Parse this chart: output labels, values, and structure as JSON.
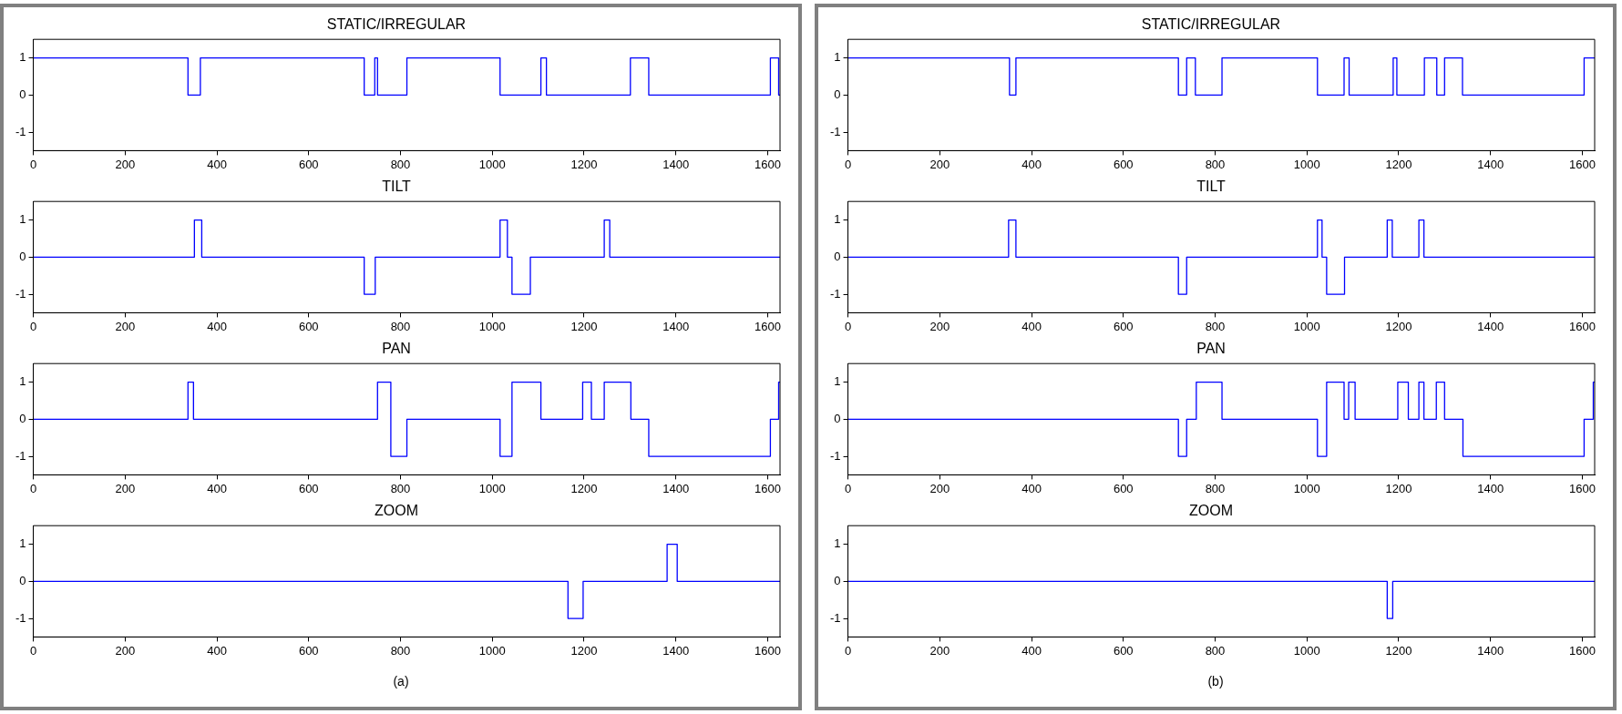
{
  "chart_data": [
    {
      "type": "step",
      "title": "STATIC/IRREGULAR",
      "x": [
        0,
        337,
        364,
        721,
        744,
        750,
        814,
        1017,
        1106,
        1118,
        1301,
        1341,
        1606,
        1624,
        1627
      ],
      "values": [
        1,
        0,
        1,
        0,
        1,
        0,
        1,
        0,
        1,
        0,
        1,
        0,
        1,
        0,
        0
      ],
      "color": "#0000ff",
      "xlim": [
        0,
        1627
      ],
      "xticks": [
        0,
        200,
        400,
        600,
        800,
        1000,
        1200,
        1400,
        1600
      ],
      "ylim": [
        -1.5,
        1.5
      ],
      "yticks": [
        -1,
        0,
        1
      ],
      "grid": false
    },
    {
      "type": "step",
      "title": "TILT",
      "x": [
        0,
        351,
        367,
        721,
        745,
        1017,
        1033,
        1043,
        1083,
        1244,
        1256,
        1627
      ],
      "values": [
        0,
        1,
        0,
        -1,
        0,
        1,
        0,
        -1,
        0,
        1,
        0,
        0
      ],
      "color": "#0000ff",
      "xlim": [
        0,
        1627
      ],
      "xticks": [
        0,
        200,
        400,
        600,
        800,
        1000,
        1200,
        1400,
        1600
      ],
      "ylim": [
        -1.5,
        1.5
      ],
      "yticks": [
        -1,
        0,
        1
      ],
      "grid": false
    },
    {
      "type": "step",
      "title": "PAN",
      "x": [
        0,
        337,
        349,
        750,
        779,
        814,
        1017,
        1043,
        1106,
        1197,
        1216,
        1244,
        1302,
        1341,
        1606,
        1624,
        1627
      ],
      "values": [
        0,
        1,
        0,
        1,
        -1,
        0,
        -1,
        1,
        0,
        1,
        0,
        1,
        0,
        -1,
        0,
        1,
        1
      ],
      "color": "#0000ff",
      "xlim": [
        0,
        1627
      ],
      "xticks": [
        0,
        200,
        400,
        600,
        800,
        1000,
        1200,
        1400,
        1600
      ],
      "ylim": [
        -1.5,
        1.5
      ],
      "yticks": [
        -1,
        0,
        1
      ],
      "grid": false
    },
    {
      "type": "step",
      "title": "ZOOM",
      "x": [
        0,
        1165,
        1198,
        1381,
        1403,
        1627
      ],
      "values": [
        0,
        -1,
        0,
        1,
        0,
        0
      ],
      "color": "#0000ff",
      "xlim": [
        0,
        1627
      ],
      "xticks": [
        0,
        200,
        400,
        600,
        800,
        1000,
        1200,
        1400,
        1600
      ],
      "ylim": [
        -1.5,
        1.5
      ],
      "yticks": [
        -1,
        0,
        1
      ],
      "grid": false,
      "annotations": [
        "(a)"
      ]
    },
    {
      "type": "step",
      "title": "STATIC/IRREGULAR",
      "x": [
        0,
        352,
        366,
        720,
        738,
        757,
        815,
        1023,
        1081,
        1092,
        1188,
        1196,
        1256,
        1283,
        1300,
        1339,
        1604,
        1627
      ],
      "values": [
        1,
        0,
        1,
        0,
        1,
        0,
        1,
        0,
        1,
        0,
        1,
        0,
        1,
        0,
        1,
        0,
        1,
        1
      ],
      "color": "#0000ff",
      "xlim": [
        0,
        1627
      ],
      "xticks": [
        0,
        200,
        400,
        600,
        800,
        1000,
        1200,
        1400,
        1600
      ],
      "ylim": [
        -1.5,
        1.5
      ],
      "yticks": [
        -1,
        0,
        1
      ],
      "grid": false
    },
    {
      "type": "step",
      "title": "TILT",
      "x": [
        0,
        350,
        366,
        720,
        738,
        1023,
        1033,
        1043,
        1082,
        1175,
        1186,
        1244,
        1255,
        1627
      ],
      "values": [
        0,
        1,
        0,
        -1,
        0,
        1,
        0,
        -1,
        0,
        1,
        0,
        1,
        0,
        0
      ],
      "color": "#0000ff",
      "xlim": [
        0,
        1627
      ],
      "xticks": [
        0,
        200,
        400,
        600,
        800,
        1000,
        1200,
        1400,
        1600
      ],
      "ylim": [
        -1.5,
        1.5
      ],
      "yticks": [
        -1,
        0,
        1
      ],
      "grid": false
    },
    {
      "type": "step",
      "title": "PAN",
      "x": [
        0,
        720,
        738,
        759,
        815,
        1023,
        1043,
        1081,
        1091,
        1105,
        1198,
        1221,
        1244,
        1255,
        1282,
        1300,
        1340,
        1604,
        1624,
        1627
      ],
      "values": [
        0,
        -1,
        0,
        1,
        0,
        -1,
        1,
        0,
        1,
        0,
        1,
        0,
        1,
        0,
        1,
        0,
        -1,
        0,
        1,
        1
      ],
      "color": "#0000ff",
      "xlim": [
        0,
        1627
      ],
      "xticks": [
        0,
        200,
        400,
        600,
        800,
        1000,
        1200,
        1400,
        1600
      ],
      "ylim": [
        -1.5,
        1.5
      ],
      "yticks": [
        -1,
        0,
        1
      ],
      "grid": false
    },
    {
      "type": "step",
      "title": "ZOOM",
      "x": [
        0,
        1175,
        1187,
        1627
      ],
      "values": [
        0,
        -1,
        0,
        0
      ],
      "color": "#0000ff",
      "xlim": [
        0,
        1627
      ],
      "xticks": [
        0,
        200,
        400,
        600,
        800,
        1000,
        1200,
        1400,
        1600
      ],
      "ylim": [
        -1.5,
        1.5
      ],
      "yticks": [
        -1,
        0,
        1
      ],
      "grid": false,
      "annotations": [
        "(b)"
      ]
    }
  ]
}
